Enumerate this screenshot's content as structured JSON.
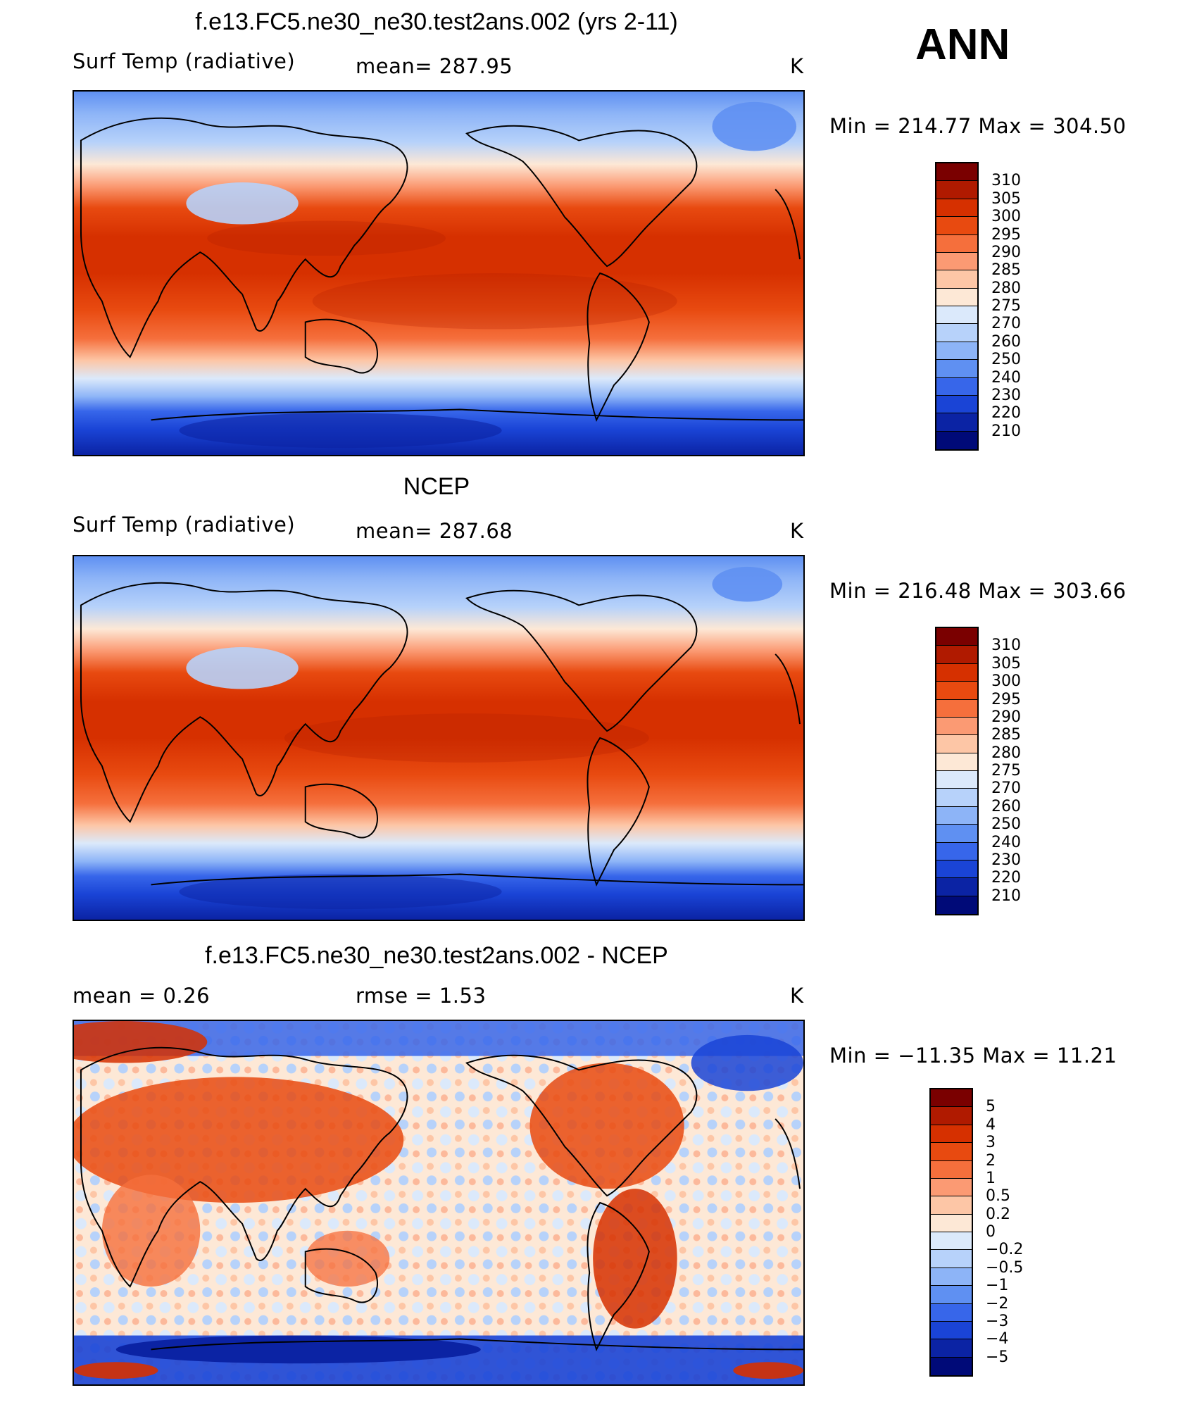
{
  "season": "ANN",
  "panels": [
    {
      "id": "model",
      "title": "f.e13.FC5.ne30_ne30.test2ans.002 (yrs 2-11)",
      "variable": "Surf Temp (radiative)",
      "stat": "mean=  287.95",
      "units": "K",
      "minmax": "Min  =  214.77  Max  =  304.50"
    },
    {
      "id": "obs",
      "title": "NCEP",
      "variable": "Surf Temp (radiative)",
      "stat": "mean=  287.68",
      "units": "K",
      "minmax": "Min  =  216.48  Max  =  303.66"
    },
    {
      "id": "diff",
      "title": "f.e13.FC5.ne30_ne30.test2ans.002 - NCEP",
      "variable": "mean =      0.26",
      "stat": "rmse =     1.53",
      "units": "K",
      "minmax": "Min  =  −11.35  Max  =     11.21"
    }
  ],
  "colorbars": {
    "absolute": {
      "labels": [
        "310",
        "305",
        "300",
        "295",
        "290",
        "285",
        "280",
        "275",
        "270",
        "260",
        "250",
        "240",
        "230",
        "220",
        "210"
      ],
      "colors": [
        "#7a0000",
        "#b01a00",
        "#d63000",
        "#e84a10",
        "#f56f3c",
        "#fb9a73",
        "#fdc6a6",
        "#fde8d6",
        "#dbe9fb",
        "#b7d2fa",
        "#8db4f7",
        "#5f90f2",
        "#3766ea",
        "#1a44d6",
        "#0b23a4",
        "#000a78"
      ]
    },
    "difference": {
      "labels": [
        "5",
        "4",
        "3",
        "2",
        "1",
        "0.5",
        "0.2",
        "0",
        "−0.2",
        "−0.5",
        "−1",
        "−2",
        "−3",
        "−4",
        "−5"
      ],
      "colors": [
        "#7a0000",
        "#b01a00",
        "#d63000",
        "#e84a10",
        "#f56f3c",
        "#fb9a73",
        "#fdc6a6",
        "#fde8d6",
        "#dbe9fb",
        "#b7d2fa",
        "#8db4f7",
        "#5f90f2",
        "#3766ea",
        "#1a44d6",
        "#0b23a4",
        "#000a78"
      ]
    }
  }
}
